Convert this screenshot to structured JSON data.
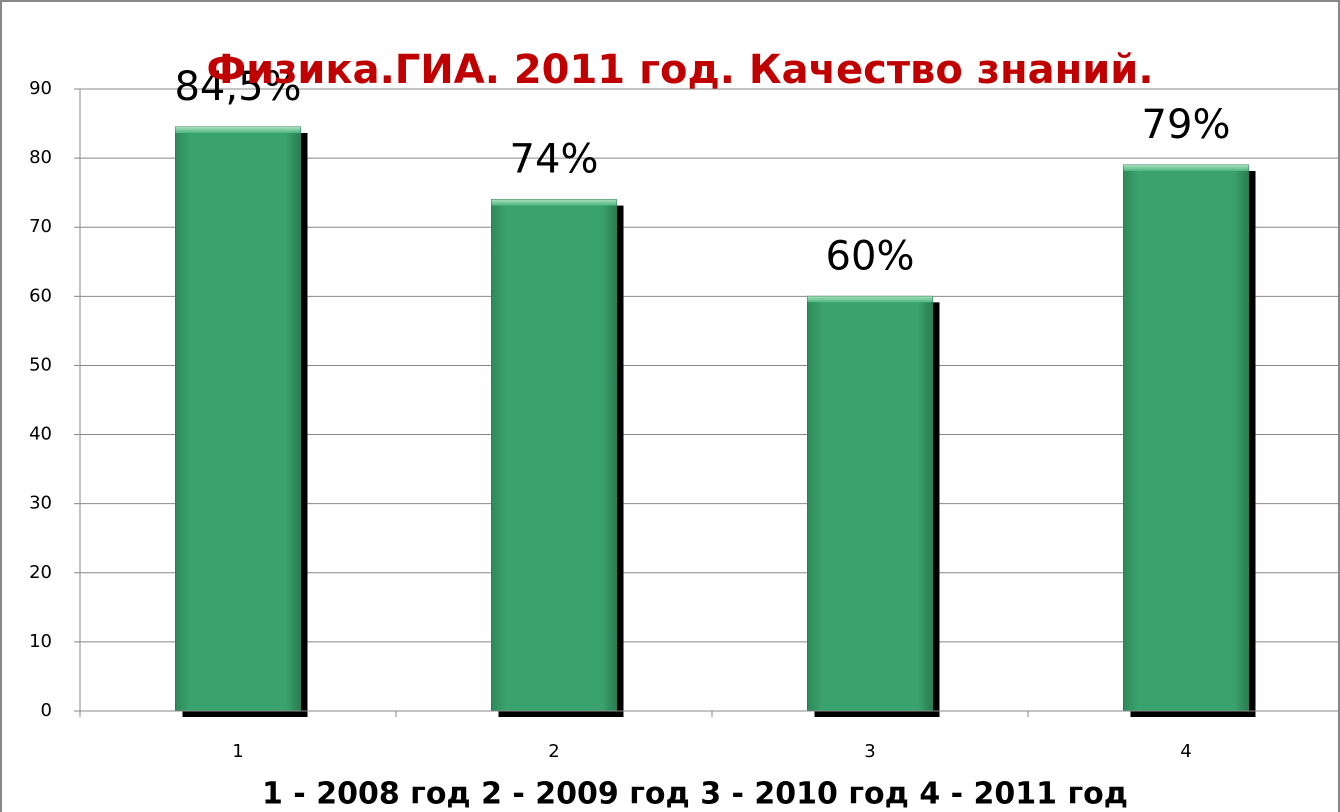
{
  "chart_data": {
    "type": "bar",
    "title": "Физика.ГИА. 2011 год. Качество знаний.",
    "x_label": "1 - 2008 год   2 - 2009 год   3 - 2010 год   4 - 2011 год",
    "categories": [
      "1",
      "2",
      "3",
      "4"
    ],
    "values": [
      84.5,
      74,
      60,
      79
    ],
    "value_labels": [
      "84,5%",
      "74%",
      "60%",
      "79%"
    ],
    "color": "#3aa36d",
    "ylim": [
      0,
      90
    ],
    "yticks": [
      0,
      10,
      20,
      30,
      40,
      50,
      60,
      70,
      80,
      90
    ],
    "grid": true
  }
}
